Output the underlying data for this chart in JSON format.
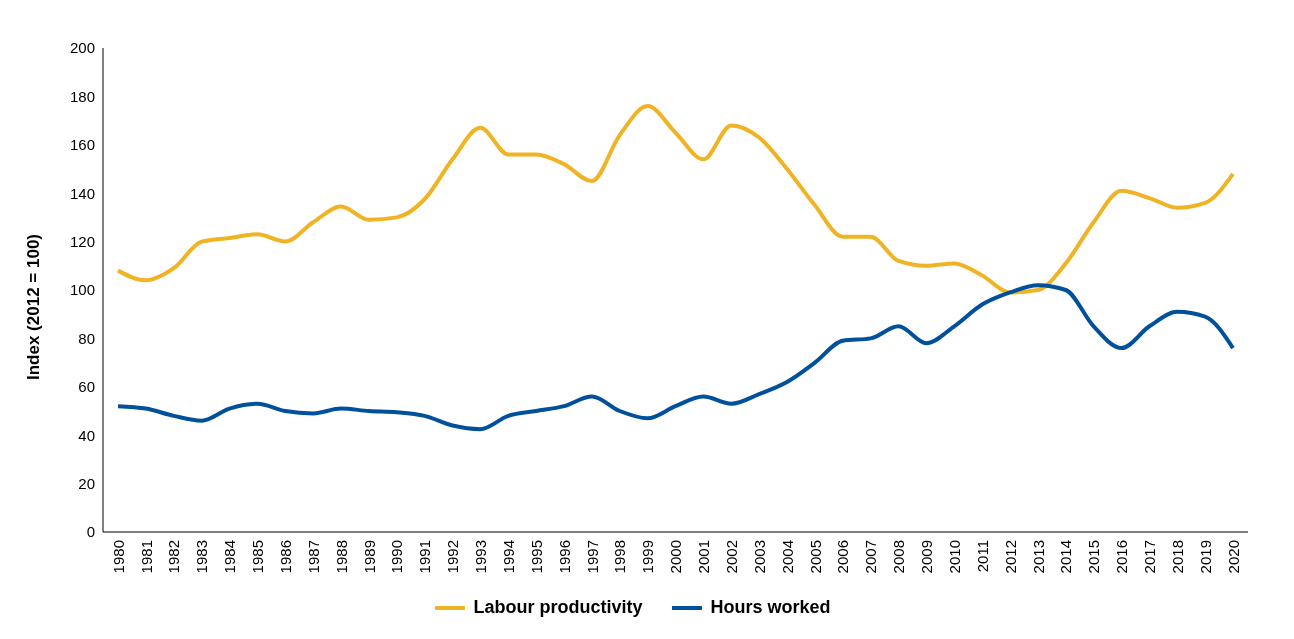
{
  "chart_data": {
    "type": "line",
    "ylabel": "Index (2012 = 100)",
    "categories": [
      "1980",
      "1981",
      "1982",
      "1983",
      "1984",
      "1985",
      "1986",
      "1987",
      "1988",
      "1989",
      "1990",
      "1991",
      "1992",
      "1993",
      "1994",
      "1995",
      "1996",
      "1997",
      "1998",
      "1999",
      "2000",
      "2001",
      "2002",
      "2003",
      "2004",
      "2005",
      "2006",
      "2007",
      "2008",
      "2009",
      "2010",
      "2011",
      "2012",
      "2013",
      "2014",
      "2015",
      "2016",
      "2017",
      "2018",
      "2019",
      "2020"
    ],
    "series": [
      {
        "name": "Labour productivity",
        "color": "#f0b323",
        "values": [
          108,
          104,
          109,
          120,
          121.5,
          123,
          120,
          128,
          134.5,
          129,
          130,
          137.5,
          154,
          167,
          156,
          156,
          152,
          145,
          164,
          176,
          165,
          154,
          168,
          163,
          150,
          135,
          122,
          122,
          112,
          110,
          111,
          106,
          99,
          100,
          111,
          128,
          141,
          138,
          134,
          136,
          148
        ]
      },
      {
        "name": "Hours worked",
        "color": "#00509b",
        "values": [
          52,
          51,
          48,
          46,
          51,
          53,
          50,
          49,
          51,
          50,
          49.5,
          48,
          44,
          42.5,
          48,
          50,
          52,
          56,
          50,
          47,
          52,
          56,
          53,
          57,
          62,
          70,
          79,
          80,
          85,
          78,
          85,
          94,
          99,
          102,
          100,
          85,
          76,
          85,
          91,
          89,
          76
        ]
      }
    ],
    "ylim": [
      0,
      200
    ],
    "yticks": [
      0,
      20,
      40,
      60,
      80,
      100,
      120,
      140,
      160,
      180,
      200
    ],
    "grid": false,
    "legend": "bottom",
    "marker": "none",
    "line_style": "solid"
  }
}
